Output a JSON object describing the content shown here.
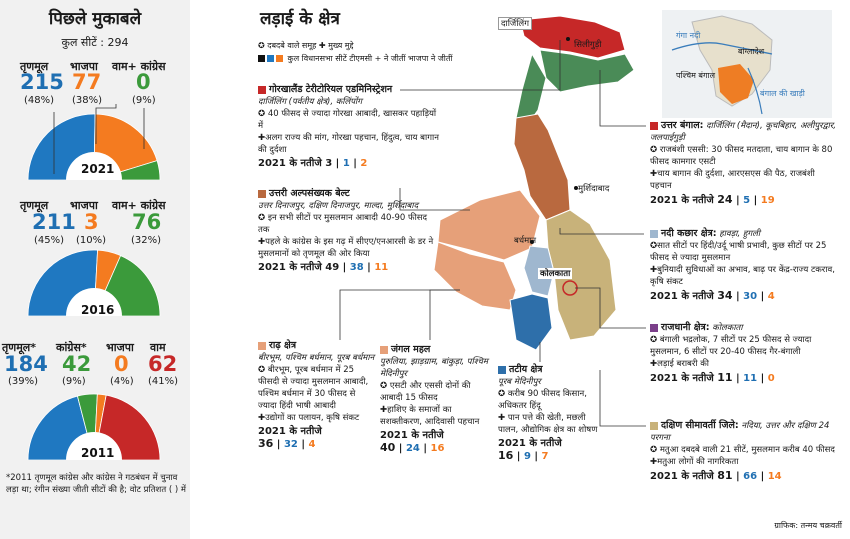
{
  "left": {
    "title": "पिछले मुकाबले",
    "total_seats": "कुल सीटें : 294",
    "e2021": {
      "year": "2021",
      "tmc": {
        "label": "तृणमूल",
        "seats": "215",
        "pct": "(48%)"
      },
      "bjp": {
        "label": "भाजपा",
        "seats": "77",
        "pct": "(38%)"
      },
      "left": {
        "label": "वाम+ कांग्रेस",
        "seats": "0",
        "pct": "(9%)"
      },
      "slices": [
        {
          "party": "tmc",
          "share": 48,
          "color": "#1f78c1"
        },
        {
          "party": "bjp",
          "share": 38,
          "color": "#f47b20"
        },
        {
          "party": "left",
          "share": 9,
          "color": "#3b9a3b"
        }
      ]
    },
    "e2016": {
      "year": "2016",
      "tmc": {
        "label": "तृणमूल",
        "seats": "211",
        "pct": "(45%)"
      },
      "bjp": {
        "label": "भाजपा",
        "seats": "3",
        "pct": "(10%)"
      },
      "left": {
        "label": "वाम+ कांग्रेस",
        "seats": "76",
        "pct": "(32%)"
      },
      "slices": [
        {
          "party": "tmc",
          "share": 45,
          "color": "#1f78c1"
        },
        {
          "party": "bjp",
          "share": 10,
          "color": "#f47b20"
        },
        {
          "party": "left",
          "share": 32,
          "color": "#3b9a3b"
        }
      ]
    },
    "e2011": {
      "year": "2011",
      "tmc": {
        "label": "तृणमूल*",
        "seats": "184",
        "pct": "(39%)"
      },
      "cong": {
        "label": "कांग्रेस*",
        "seats": "42",
        "pct": "(9%)"
      },
      "bjp": {
        "label": "भाजपा",
        "seats": "0",
        "pct": "(4%)"
      },
      "left": {
        "label": "वाम",
        "seats": "62",
        "pct": "(41%)"
      },
      "slices": [
        {
          "party": "tmc",
          "share": 39,
          "color": "#1f78c1"
        },
        {
          "party": "cong",
          "share": 9,
          "color": "#3b9a3b"
        },
        {
          "party": "bjp",
          "share": 4,
          "color": "#f47b20"
        },
        {
          "party": "left",
          "share": 41,
          "color": "#c62828"
        }
      ]
    },
    "note": "*2011 तृणमूल कांग्रेस और कांग्रेस ने गठबंधन में चुनाव लड़ा था; रंगीन संख्या जीती सीटों की है; वोट प्रतिशत ( ) में"
  },
  "main": {
    "title": "लड़ाई के क्षेत्र",
    "legend1": "✪ दबदबे वाले समूह  ✚ मुख्य मुद्दे",
    "legend2": "कुल विधानसभा सीटें  टीएमसी + ने जीतीं  भाजपा ने जीतीं",
    "legend_colors": [
      "#111111",
      "#1f78c1",
      "#f47b20"
    ]
  },
  "regions": {
    "gorkha": {
      "title": "गोरखालैंड टेरीटोरियल एडमिनिस्ट्रेशन",
      "sub": "दार्जिलिंग (पर्वतीय क्षेत्र), कलिंपोंग",
      "b1": "✪ 40 फीसद से ज्यादा गोरखा आबादी, खासकर पहाड़ियों में",
      "b2": "✚अलग राज्य की मांग, गोरखा पहचान, हिंदुत्व, चाय बागान की दुर्दशा",
      "res_label": "2021 के नतीजे",
      "total": "3",
      "tmc": "1",
      "bjp": "2"
    },
    "minority": {
      "title": "उत्तरी अल्पसंख्यक बेल्ट",
      "sub": "उत्तर दिनाजपुर, दक्षिण दिनाजपुर, माल्दा, मुर्शिदाबाद",
      "b1": "✪ इन सभी सीटों पर मुसलमान आबादी 40-90 फीसद तक",
      "b2": "✚पहले के कांग्रेस के इस गढ़ में सीएए/एनआरसी के डर ने मुसलमानों को तृणमूल की ओर किया",
      "res_label": "2021 के नतीजे",
      "total": "49",
      "tmc": "38",
      "bjp": "11"
    },
    "rarh": {
      "title": "राढ़ क्षेत्र",
      "sub": "बीरभूम, पश्चिम बर्धमान, पूरब बर्धमान",
      "b1": "✪ बीरभूम, पूरब बर्धमान में 25 फीसदी से ज्यादा मुसलमान आबादी, पश्चिम बर्धमान में 30 फीसद से ज्यादा हिंदी भाषी आबादी",
      "b2": "✚उद्योगों का पलायन, कृषि संकट",
      "res_label": "2021 के नतीजे",
      "total": "36",
      "tmc": "32",
      "bjp": "4"
    },
    "jangal": {
      "title": "जंगल महल",
      "sub": "पुरुलिया, झाड़ग्राम, बांकुड़ा, पश्चिम मेदिनीपुर",
      "b1": "✪ एसटी और एससी दोनों की आबादी 15 फीसद",
      "b2": "✚हाशिए के समाजों का सशक्तीकरण, आदिवासी पहचान",
      "res_label": "2021 के नतीजे",
      "total": "40",
      "tmc": "24",
      "bjp": "16"
    },
    "coastal": {
      "title": "तटीय क्षेत्र",
      "sub": "पूरब मेदिनीपुर",
      "b1": "✪ करीब 90 फीसद किसान, अधिकतर हिंदू",
      "b2": "✚ पान पत्ते की खेती, मछली पालन, औद्योगिक क्षेत्र का शोषण",
      "res_label": "2021 के नतीजे",
      "total": "16",
      "tmc": "9",
      "bjp": "7"
    },
    "north": {
      "title": "उत्तर बंगाल:",
      "title_rest": " दार्जिलिंग (मैदान), कूचबिहार, अलीपुरद्वार, जलपाईगुड़ी",
      "b1": "✪ राजबंशी एससी: 30 फीसद मतदाता, चाय बागान के 80 फीसद कामगार एसटी",
      "b2": "✚चाय बागान की दुर्दशा, आरएसएस की पैठ, राजबंशी पहचान",
      "res_label": "2021 के नतीजे",
      "total": "24",
      "tmc": "5",
      "bjp": "19"
    },
    "river": {
      "title": "नदी कछार क्षेत्र:",
      "title_rest": " हावड़ा, हुगली",
      "b1": "✪सात सीटों पर हिंदी/उर्दू भाषी प्रभावी, कुछ सीटों पर 25 फीसद से ज्यादा मुसलमान",
      "b2": "✚बुनियादी सुविधाओं का अभाव, बाढ़ पर केंद्र-राज्य टकराव, कृषि संकट",
      "res_label": "2021 के नतीजे",
      "total": "34",
      "tmc": "30",
      "bjp": "4"
    },
    "capital": {
      "title": "राजधानी क्षेत्र:",
      "title_rest": " कोलकाता",
      "b1": "✪ बंगाली भद्रलोक, 7 सीटों पर 25 फीसद से ज्यादा मुसलमान, 6 सीटों पर 20-40 फीसद गैर-बंगाली",
      "b2": "✚लड़ाई बराबरी की",
      "res_label": "2021 के नतीजे",
      "total": "11",
      "tmc": "11",
      "bjp": "0"
    },
    "south": {
      "title": "दक्षिण सीमावर्ती जिले:",
      "title_rest": " नदिया, उत्तर और दक्षिण 24 परगना",
      "b1": "✪ मतुआ दबदबे वाली 21 सीटें, मुसलमान करीब 40 फीसद",
      "b2": "✚मतुआ लोगों की नागरिकता",
      "res_label": "2021 के नतीजे",
      "total": "81",
      "tmc": "66",
      "bjp": "14"
    }
  },
  "map": {
    "darjeeling": "दार्जिलिंग",
    "siliguri": "सिलीगुड़ी",
    "murshidabad": "मुर्शिदाबाद",
    "bardhaman": "बर्धमान",
    "kolkata": "कोलकाता",
    "inset_ganga": "गंगा नदी",
    "inset_bangladesh": "बांग्लादेश",
    "inset_wb": "पश्चिम बंगाल",
    "inset_bay": "बंगाल की खाड़ी"
  },
  "credit": "ग्राफिक: तन्मय चक्रवर्ती"
}
